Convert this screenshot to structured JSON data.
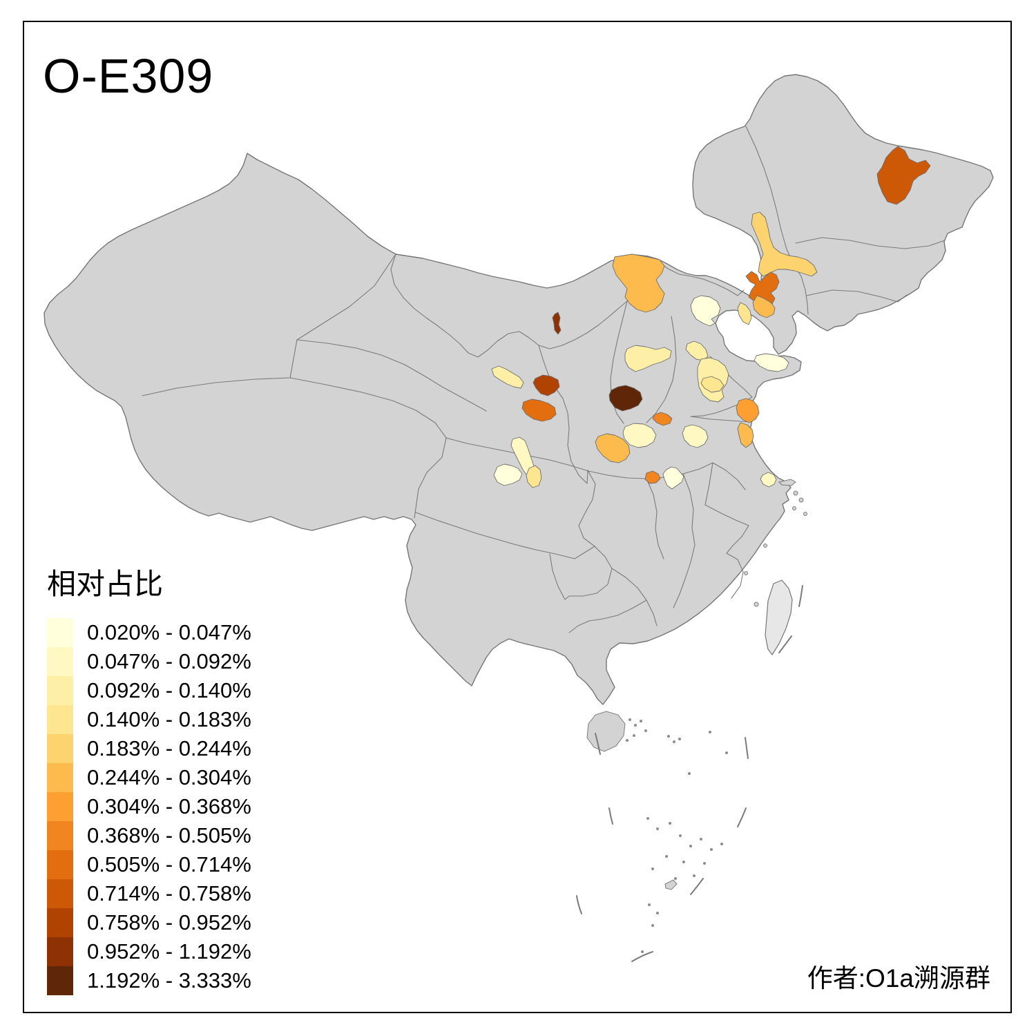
{
  "title": "O-E309",
  "attribution": "作者:O1a溯源群",
  "legend": {
    "title": "相对占比",
    "items": [
      {
        "range": "0.020% - 0.047%",
        "color": "#FFFFDC"
      },
      {
        "range": "0.047% - 0.092%",
        "color": "#FFF8C3"
      },
      {
        "range": "0.092% - 0.140%",
        "color": "#FEEFA6"
      },
      {
        "range": "0.140% - 0.183%",
        "color": "#FEE690"
      },
      {
        "range": "0.183% - 0.244%",
        "color": "#FDD36F"
      },
      {
        "range": "0.244% - 0.304%",
        "color": "#FDBB4E"
      },
      {
        "range": "0.304% - 0.368%",
        "color": "#FD9F31"
      },
      {
        "range": "0.368% - 0.505%",
        "color": "#F1851F"
      },
      {
        "range": "0.505% - 0.714%",
        "color": "#E26E0F"
      },
      {
        "range": "0.714% - 0.758%",
        "color": "#CD5806"
      },
      {
        "range": "0.758% - 0.952%",
        "color": "#B04202"
      },
      {
        "range": "0.952% - 1.192%",
        "color": "#8F3203"
      },
      {
        "range": "1.192% - 3.333%",
        "color": "#5F2708"
      }
    ]
  },
  "map": {
    "land_color": "#D3D3D3",
    "border_color": "#757575",
    "taiwan_color": "#E7E7E7",
    "regions": [
      {
        "id": "r1-northeast-blob",
        "legend_class": 10
      },
      {
        "id": "r2-inner-mongolia-east-strip",
        "legend_class": 5
      },
      {
        "id": "r3-inner-mongolia-west-blob",
        "legend_class": 6
      },
      {
        "id": "r4-liaoning-west-butterfly",
        "legend_class": 9
      },
      {
        "id": "r5-liaoning-southwest",
        "legend_class": 6
      },
      {
        "id": "r6-coastal-sliver-hebei-east",
        "legend_class": 4
      },
      {
        "id": "r7-beijing-pale",
        "legend_class": 1
      },
      {
        "id": "r8-tiny-dark-sliver",
        "legend_class": 12
      },
      {
        "id": "r9-shanxi-north-pale",
        "legend_class": 3
      },
      {
        "id": "r10-hebei-south-pale",
        "legend_class": 3
      },
      {
        "id": "r11-shandong-east-palest",
        "legend_class": 1
      },
      {
        "id": "r12-shandong-west-outer",
        "legend_class": 3
      },
      {
        "id": "r13-shandong-west-core",
        "legend_class": 4
      },
      {
        "id": "r14-gansu-dark-red",
        "legend_class": 11
      },
      {
        "id": "r15-gansu-orange",
        "legend_class": 9
      },
      {
        "id": "r16-shanxi-south-darkest",
        "legend_class": 13
      },
      {
        "id": "r17-henan-north-orange",
        "legend_class": 8
      },
      {
        "id": "r18-jiangsu-coast-orange",
        "legend_class": 7
      },
      {
        "id": "r19-jiangsu-mid-light",
        "legend_class": 6
      },
      {
        "id": "r20-henan-east-pale",
        "legend_class": 2
      },
      {
        "id": "r21-shaanxi-south-orange",
        "legend_class": 6
      },
      {
        "id": "r22-henan-west-pale",
        "legend_class": 2
      },
      {
        "id": "r23-gansu-south-strip",
        "legend_class": 2
      },
      {
        "id": "r24-gansu-south-lower",
        "legend_class": 4
      },
      {
        "id": "r25-sichuan-north-palest",
        "legend_class": 1
      },
      {
        "id": "r26-hubei-west-orange",
        "legend_class": 8
      },
      {
        "id": "r27-hubei-northwest-palest",
        "legend_class": 1
      },
      {
        "id": "r28-jiangnan-pale",
        "legend_class": 2
      },
      {
        "id": "r29-gansu-wuwei-strip",
        "legend_class": 3
      }
    ]
  }
}
